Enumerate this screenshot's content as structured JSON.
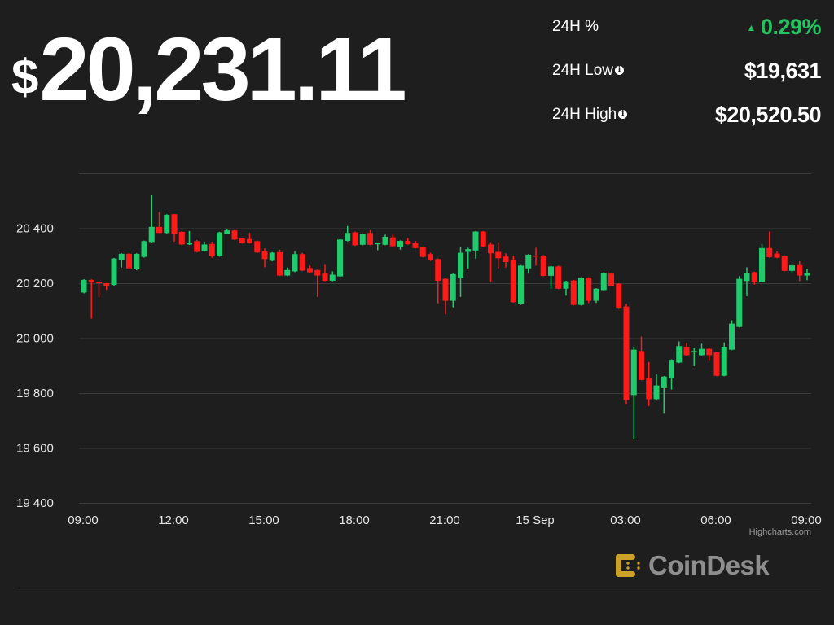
{
  "header": {
    "currency_symbol": "$",
    "price": "20,231.11",
    "stats": [
      {
        "label": "24H %",
        "value": "0.29%",
        "direction": "up",
        "info": false
      },
      {
        "label": "24H Low",
        "value": "$19,631",
        "info": true
      },
      {
        "label": "24H High",
        "value": "$20,520.50",
        "info": true
      }
    ]
  },
  "colors": {
    "up": "#1fcb6c",
    "down": "#ff1a1a",
    "background": "#1e1e1e",
    "grid": "#3c3c3c",
    "accent_green": "#22c55e",
    "logo_gold": "#c9a227"
  },
  "chart_data": {
    "type": "candlestick",
    "interval_minutes": 15,
    "start_time": "09:00",
    "ylim": [
      19400,
      20600
    ],
    "yticks": [
      "19 400",
      "19 600",
      "19 800",
      "20 000",
      "20 200",
      "20 400"
    ],
    "ytick_values": [
      19400,
      19600,
      19800,
      20000,
      20200,
      20400
    ],
    "xticks": [
      "09:00",
      "12:00",
      "15:00",
      "18:00",
      "21:00",
      "15 Sep",
      "03:00",
      "06:00",
      "09:00"
    ],
    "grid": true,
    "ohlc_fields": [
      "open",
      "high",
      "low",
      "close"
    ],
    "candles": [
      [
        20166,
        20215,
        20163,
        20212
      ],
      [
        20212,
        20214,
        20071,
        20204
      ],
      [
        20205,
        20207,
        20149,
        20200
      ],
      [
        20200,
        20201,
        20176,
        20190
      ],
      [
        20194,
        20292,
        20190,
        20290
      ],
      [
        20283,
        20309,
        20257,
        20307
      ],
      [
        20307,
        20309,
        20252,
        20254
      ],
      [
        20251,
        20309,
        20247,
        20307
      ],
      [
        20296,
        20355,
        20293,
        20353
      ],
      [
        20350,
        20520,
        20348,
        20405
      ],
      [
        20405,
        20459,
        20382,
        20383
      ],
      [
        20383,
        20451,
        20380,
        20449
      ],
      [
        20451,
        20452,
        20351,
        20380
      ],
      [
        20387,
        20390,
        20339,
        20341
      ],
      [
        20341,
        20390,
        20339,
        20346
      ],
      [
        20353,
        20357,
        20312,
        20314
      ],
      [
        20317,
        20351,
        20315,
        20341
      ],
      [
        20343,
        20351,
        20293,
        20299
      ],
      [
        20299,
        20387,
        20297,
        20385
      ],
      [
        20380,
        20398,
        20378,
        20392
      ],
      [
        20392,
        20394,
        20357,
        20359
      ],
      [
        20363,
        20365,
        20344,
        20346
      ],
      [
        20361,
        20383,
        20344,
        20346
      ],
      [
        20353,
        20355,
        20310,
        20312
      ],
      [
        20317,
        20327,
        20258,
        20288
      ],
      [
        20282,
        20313,
        20280,
        20311
      ],
      [
        20313,
        20322,
        20226,
        20228
      ],
      [
        20228,
        20257,
        20226,
        20248
      ],
      [
        20243,
        20317,
        20240,
        20306
      ],
      [
        20306,
        20310,
        20244,
        20246
      ],
      [
        20255,
        20264,
        20236,
        20240
      ],
      [
        20248,
        20250,
        20150,
        20228
      ],
      [
        20235,
        20267,
        20207,
        20209
      ],
      [
        20209,
        20243,
        20207,
        20231
      ],
      [
        20225,
        20361,
        20223,
        20359
      ],
      [
        20354,
        20408,
        20352,
        20383
      ],
      [
        20385,
        20388,
        20336,
        20338
      ],
      [
        20340,
        20381,
        20338,
        20379
      ],
      [
        20383,
        20393,
        20338,
        20340
      ],
      [
        20342,
        20347,
        20320,
        20346
      ],
      [
        20340,
        20377,
        20338,
        20369
      ],
      [
        20367,
        20377,
        20333,
        20335
      ],
      [
        20332,
        20356,
        20322,
        20354
      ],
      [
        20354,
        20364,
        20340,
        20342
      ],
      [
        20345,
        20354,
        20326,
        20328
      ],
      [
        20332,
        20334,
        20294,
        20296
      ],
      [
        20306,
        20311,
        20281,
        20283
      ],
      [
        20288,
        20290,
        20126,
        20209
      ],
      [
        20216,
        20218,
        20087,
        20136
      ],
      [
        20136,
        20235,
        20112,
        20233
      ],
      [
        20219,
        20331,
        20150,
        20311
      ],
      [
        20314,
        20329,
        20254,
        20324
      ],
      [
        20319,
        20390,
        20289,
        20388
      ],
      [
        20388,
        20390,
        20332,
        20334
      ],
      [
        20341,
        20349,
        20205,
        20309
      ],
      [
        20314,
        20349,
        20254,
        20291
      ],
      [
        20297,
        20309,
        20257,
        20277
      ],
      [
        20284,
        20301,
        20129,
        20131
      ],
      [
        20126,
        20266,
        20121,
        20264
      ],
      [
        20254,
        20306,
        20235,
        20304
      ],
      [
        20301,
        20329,
        20264,
        20297
      ],
      [
        20301,
        20303,
        20225,
        20227
      ],
      [
        20227,
        20263,
        20180,
        20261
      ],
      [
        20261,
        20264,
        20178,
        20180
      ],
      [
        20180,
        20209,
        20155,
        20207
      ],
      [
        20210,
        20212,
        20119,
        20121
      ],
      [
        20121,
        20222,
        20119,
        20220
      ],
      [
        20220,
        20222,
        20128,
        20136
      ],
      [
        20136,
        20182,
        20128,
        20180
      ],
      [
        20175,
        20240,
        20173,
        20238
      ],
      [
        20235,
        20237,
        20188,
        20190
      ],
      [
        20198,
        20200,
        20106,
        20108
      ],
      [
        20115,
        20125,
        19760,
        19775
      ],
      [
        19793,
        19968,
        19631,
        19958
      ],
      [
        19953,
        20006,
        19846,
        19848
      ],
      [
        19853,
        19913,
        19753,
        19778
      ],
      [
        19778,
        19868,
        19773,
        19828
      ],
      [
        19818,
        19862,
        19725,
        19860
      ],
      [
        19855,
        19923,
        19813,
        19921
      ],
      [
        19911,
        19988,
        19909,
        19971
      ],
      [
        19968,
        19983,
        19936,
        19938
      ],
      [
        19948,
        19963,
        19898,
        19953
      ],
      [
        19938,
        19980,
        19936,
        19961
      ],
      [
        19961,
        19963,
        19920,
        19938
      ],
      [
        19948,
        19950,
        19861,
        19863
      ],
      [
        19863,
        19985,
        19861,
        19968
      ],
      [
        19958,
        20065,
        19956,
        20053
      ],
      [
        20041,
        20226,
        20039,
        20216
      ],
      [
        20208,
        20258,
        20153,
        20238
      ],
      [
        20240,
        20242,
        20195,
        20203
      ],
      [
        20205,
        20343,
        20203,
        20328
      ],
      [
        20328,
        20388,
        20293,
        20295
      ],
      [
        20308,
        20316,
        20291,
        20293
      ],
      [
        20300,
        20302,
        20243,
        20245
      ],
      [
        20245,
        20267,
        20240,
        20265
      ],
      [
        20266,
        20280,
        20208,
        20228
      ],
      [
        20228,
        20253,
        20211,
        20236
      ]
    ],
    "credits": "Highcharts.com"
  },
  "branding": {
    "logo_text": "CoinDesk"
  }
}
